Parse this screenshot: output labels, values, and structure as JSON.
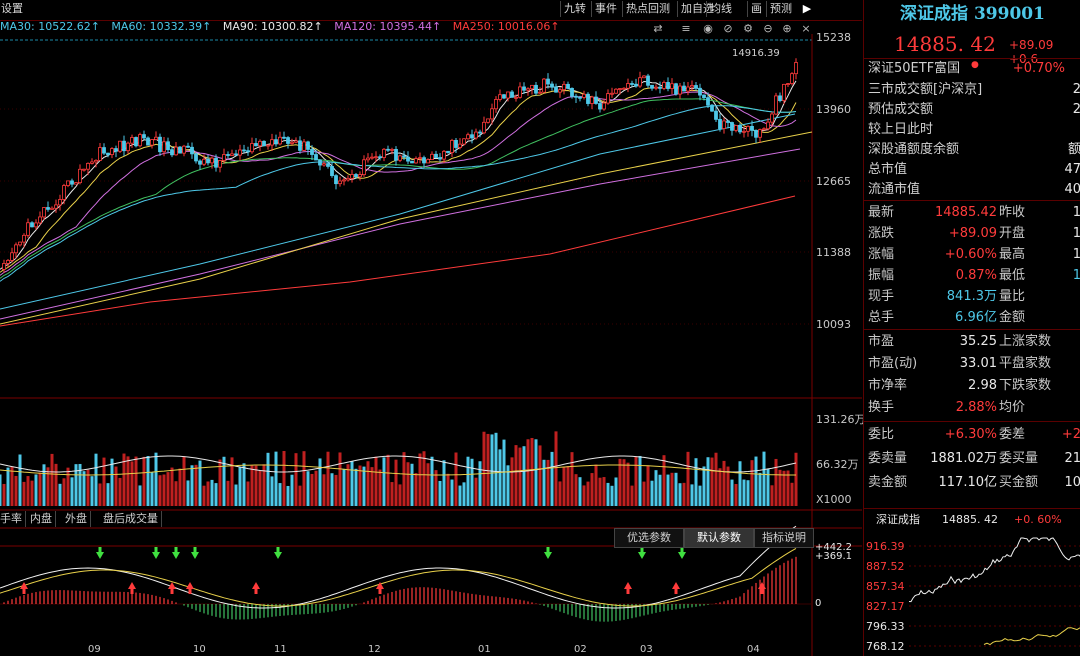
{
  "toolbar": {
    "buttons": [
      "九转",
      "事件",
      "热点回测",
      "加自选",
      "均线",
      "画",
      "预测"
    ],
    "left_fragment": "设置"
  },
  "ma": {
    "ma30": "MA30: 10522.62↑",
    "ma60": "MA60: 10332.39↑",
    "ma90": "MA90: 10300.82↑",
    "ma120": "MA120: 10395.44↑",
    "ma250": "MA250: 10016.06↑",
    "colors": {
      "ma30": "#4ec8e8",
      "ma60": "#4ec8e8",
      "ma90": "#e8e8e8",
      "ma120": "#d070e0",
      "ma250": "#ff3b3b"
    }
  },
  "price_axis": [
    "15238",
    "13960",
    "12665",
    "11388",
    "10093"
  ],
  "high_marker": "14916.39",
  "volume_axis": [
    "131.26万",
    "66.32万",
    "X1000"
  ],
  "bottom_tabs": [
    "手率",
    "内盘",
    "外盘",
    "盘后成交量"
  ],
  "indicator_tabs": {
    "opt": "优选参数",
    "default": "默认参数",
    "help": "指标说明"
  },
  "macd_axis": [
    "+442.2",
    "+369.1",
    "0"
  ],
  "x_axis": [
    "09",
    "10",
    "11",
    "12",
    "01",
    "02",
    "03",
    "04"
  ],
  "panel": {
    "title": "深证成指 399001",
    "price": "14885. 42",
    "change": "+89.09  +0.6",
    "etf_label": "深证50ETF富国",
    "etf_change": "+0.70%",
    "info_rows": [
      {
        "k": "三市成交额[沪深京]",
        "v": "2"
      },
      {
        "k": "预估成交额",
        "v": "2"
      },
      {
        "k": "较上日此时",
        "v": ""
      },
      {
        "k": "深股通额度余额",
        "v": "额"
      },
      {
        "k": "总市值",
        "v": "47"
      },
      {
        "k": "流通市值",
        "v": "40"
      }
    ],
    "quote_rows": [
      {
        "k": "最新",
        "v": "14885.42",
        "k2": "昨收",
        "v2": "1"
      },
      {
        "k": "涨跌",
        "v": "+89.09",
        "k2": "开盘",
        "v2": "1"
      },
      {
        "k": "涨幅",
        "v": "+0.60%",
        "k2": "最高",
        "v2": "1"
      },
      {
        "k": "振幅",
        "v": "0.87%",
        "k2": "最低",
        "v2": "1"
      },
      {
        "k": "现手",
        "v": "841.3万",
        "k2": "量比",
        "v2": ""
      },
      {
        "k": "总手",
        "v": "6.96亿",
        "k2": "金额",
        "v2": ""
      }
    ],
    "val_rows": [
      {
        "k": "市盈",
        "v": "35.25",
        "k2": "上涨家数"
      },
      {
        "k": "市盈(动)",
        "v": "33.01",
        "k2": "平盘家数"
      },
      {
        "k": "市净率",
        "v": "2.98",
        "k2": "下跌家数"
      },
      {
        "k": "换手",
        "v": "2.88%",
        "k2": "均价"
      }
    ],
    "order_rows": [
      {
        "k": "委比",
        "v": "+6.30%",
        "k2": "委差",
        "v2": "+2"
      },
      {
        "k": "委卖量",
        "v": "1881.02万",
        "k2": "委买量",
        "v2": "21"
      },
      {
        "k": "卖金额",
        "v": "117.10亿",
        "k2": "买金额",
        "v2": "10"
      }
    ],
    "mini": {
      "name": "深证成指",
      "price": "14885. 42",
      "change": "+0. 60%",
      "axis": [
        "916.39",
        "887.52",
        "857.34",
        "827.17",
        "796.33",
        "768.12"
      ]
    }
  }
}
